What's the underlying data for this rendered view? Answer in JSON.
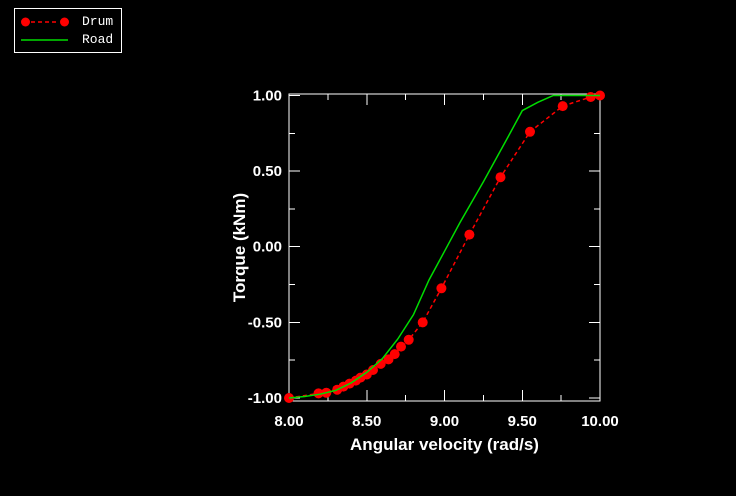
{
  "figure": {
    "background": "#000000",
    "text_color": "#ffffff",
    "axis_color": "#ffffff",
    "legend": {
      "items": [
        {
          "label": "Drum",
          "series": "drum"
        },
        {
          "label": "Road",
          "series": "road"
        }
      ]
    }
  },
  "chart_data": {
    "type": "line",
    "title": "",
    "xlabel": "Angular velocity (rad/s)",
    "ylabel": "Torque (kNm)",
    "xlim": [
      8.0,
      10.0
    ],
    "ylim": [
      -1.02,
      1.01
    ],
    "grid": false,
    "legend_position": "outside-top-left",
    "x_major_ticks": {
      "values": [
        8.0,
        8.5,
        9.0,
        9.5,
        10.0
      ],
      "labels": [
        "8.00",
        "8.50",
        "9.00",
        "9.50",
        "10.00"
      ]
    },
    "x_minor_ticks": [
      8.25,
      8.75,
      9.25,
      9.75
    ],
    "y_major_ticks": {
      "values": [
        1.0,
        0.5,
        0.0,
        -0.5,
        -1.0
      ],
      "labels": [
        "1.00",
        "0.50",
        "0.00",
        "-0.50",
        "-1.00"
      ]
    },
    "y_minor_ticks": [
      0.75,
      0.25,
      -0.25,
      -0.75
    ],
    "series": [
      {
        "name": "Drum",
        "color": "#ff0000",
        "line_style": "dashed",
        "marker": "circle",
        "points": [
          [
            8.0,
            -1.0
          ],
          [
            8.19,
            -0.97
          ],
          [
            8.24,
            -0.965
          ],
          [
            8.31,
            -0.945
          ],
          [
            8.35,
            -0.925
          ],
          [
            8.39,
            -0.905
          ],
          [
            8.43,
            -0.885
          ],
          [
            8.46,
            -0.865
          ],
          [
            8.5,
            -0.845
          ],
          [
            8.54,
            -0.815
          ],
          [
            8.59,
            -0.775
          ],
          [
            8.64,
            -0.745
          ],
          [
            8.68,
            -0.71
          ],
          [
            8.72,
            -0.66
          ],
          [
            8.77,
            -0.615
          ],
          [
            8.86,
            -0.5
          ],
          [
            8.98,
            -0.275
          ],
          [
            9.16,
            0.08
          ],
          [
            9.36,
            0.46
          ],
          [
            9.55,
            0.76
          ],
          [
            9.76,
            0.93
          ],
          [
            9.94,
            0.99
          ],
          [
            10.0,
            1.0
          ]
        ]
      },
      {
        "name": "Road",
        "color": "#00dd00",
        "line_style": "solid",
        "marker": "none",
        "points": [
          [
            8.0,
            -1.0
          ],
          [
            8.1,
            -0.99
          ],
          [
            8.2,
            -0.975
          ],
          [
            8.3,
            -0.95
          ],
          [
            8.4,
            -0.9
          ],
          [
            8.5,
            -0.83
          ],
          [
            8.6,
            -0.74
          ],
          [
            8.7,
            -0.61
          ],
          [
            8.8,
            -0.45
          ],
          [
            8.9,
            -0.22
          ],
          [
            9.0,
            -0.03
          ],
          [
            9.1,
            0.16
          ],
          [
            9.25,
            0.43
          ],
          [
            9.4,
            0.71
          ],
          [
            9.5,
            0.9
          ],
          [
            9.6,
            0.955
          ],
          [
            9.7,
            1.0
          ],
          [
            10.0,
            1.0
          ]
        ]
      }
    ]
  }
}
